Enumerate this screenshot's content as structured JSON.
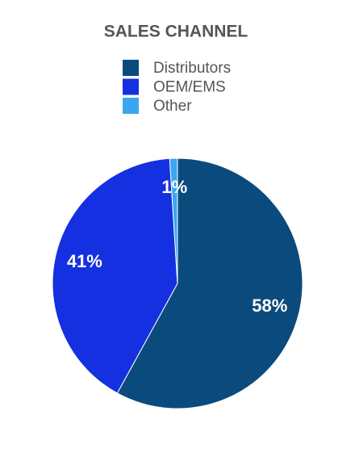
{
  "chart_data": {
    "type": "pie",
    "title": "SALES CHANNEL",
    "categories": [
      "Distributors",
      "OEM/EMS",
      "Other"
    ],
    "values": [
      58,
      41,
      1
    ],
    "value_labels": [
      "58%",
      "41%",
      "1%"
    ],
    "colors": [
      "#0b4a7d",
      "#1530e0",
      "#3aa6f0"
    ]
  }
}
